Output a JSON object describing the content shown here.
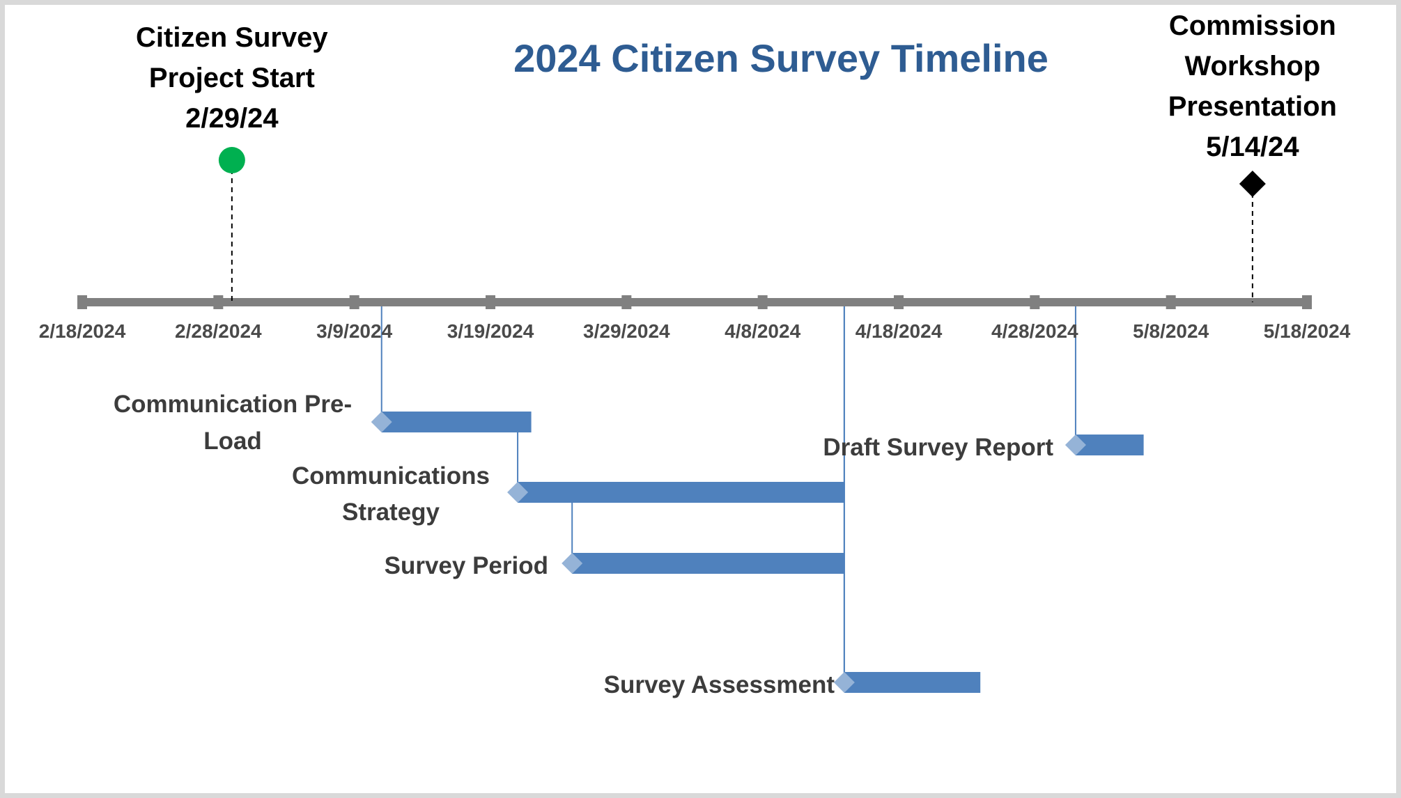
{
  "chart_data": {
    "type": "timeline",
    "title": "2024 Citizen Survey Timeline",
    "axis": {
      "start": "2024-02-18",
      "end": "2024-05-18",
      "tick_labels": [
        "2/18/2024",
        "2/28/2024",
        "3/9/2024",
        "3/19/2024",
        "3/29/2024",
        "4/8/2024",
        "4/18/2024",
        "4/28/2024",
        "5/8/2024",
        "5/18/2024"
      ],
      "tick_dates": [
        "2024-02-18",
        "2024-02-28",
        "2024-03-09",
        "2024-03-19",
        "2024-03-29",
        "2024-04-08",
        "2024-04-18",
        "2024-04-28",
        "2024-05-08",
        "2024-05-18"
      ]
    },
    "milestones": [
      {
        "label": [
          "Citizen Survey",
          "Project Start",
          "2/29/24"
        ],
        "date": "2024-02-29",
        "marker": "circle",
        "color": "#00b050"
      },
      {
        "label": [
          "Commission",
          "Workshop",
          "Presentation",
          "5/14/24"
        ],
        "date": "2024-05-14",
        "marker": "diamond",
        "color": "#000000"
      }
    ],
    "tasks": [
      {
        "label": [
          "Communication Pre-",
          "Load"
        ],
        "start": "2024-03-11",
        "end": "2024-03-22",
        "color": "#4f81bd"
      },
      {
        "label": [
          "Communications",
          "Strategy"
        ],
        "start": "2024-03-21",
        "end": "2024-04-14",
        "color": "#4f81bd"
      },
      {
        "label": [
          "Survey Period"
        ],
        "start": "2024-03-25",
        "end": "2024-04-14",
        "color": "#4f81bd"
      },
      {
        "label": [
          "Survey Assessment"
        ],
        "start": "2024-04-14",
        "end": "2024-04-24",
        "color": "#4f81bd"
      },
      {
        "label": [
          "Draft Survey Report"
        ],
        "start": "2024-05-01",
        "end": "2024-05-06",
        "color": "#4f81bd"
      }
    ],
    "colors": {
      "axis": "#808080",
      "title": "#2e5c92",
      "task_bar": "#4f81bd",
      "task_diamond": "#95b3d7",
      "connector": "#4f81bd"
    }
  }
}
